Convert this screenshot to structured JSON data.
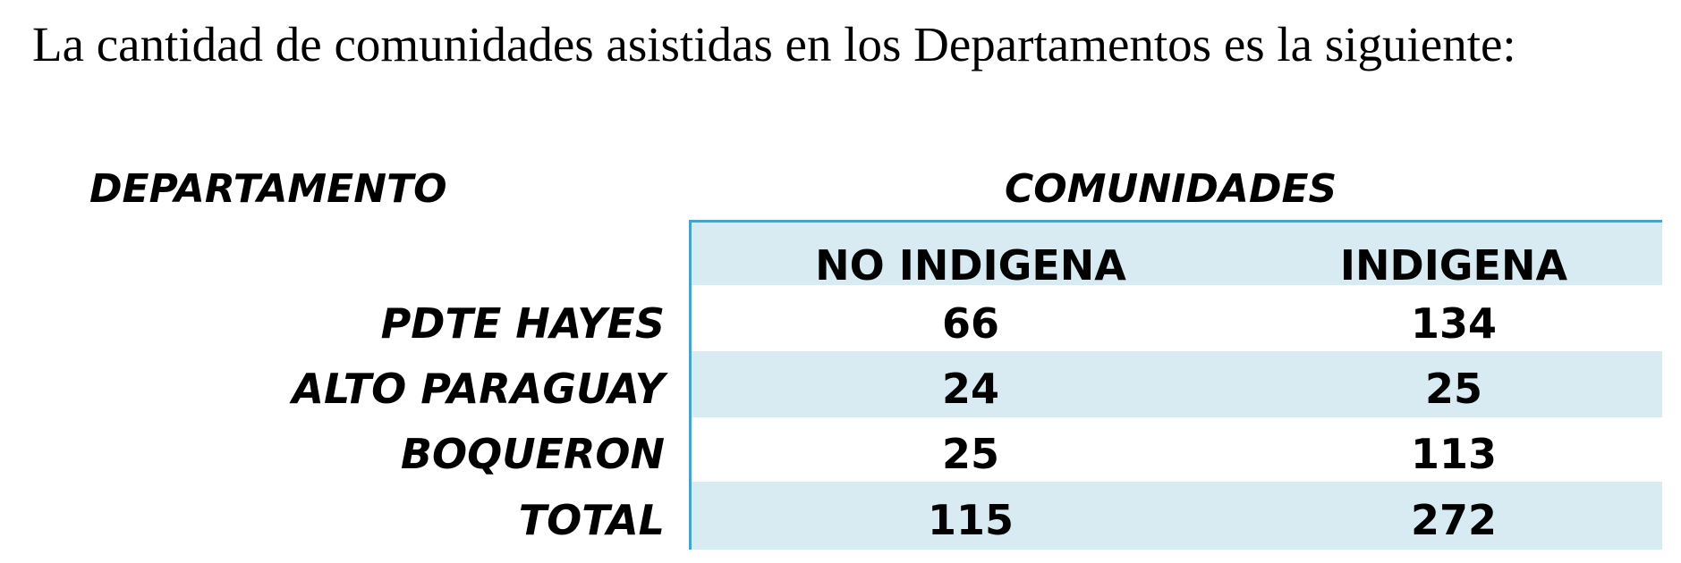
{
  "intro_text": "La cantidad de comunidades asistidas en los Departamentos es la siguiente:",
  "table": {
    "header_departamento": "DEPARTAMENTO",
    "header_comunidades": "COMUNIDADES",
    "columns": [
      "NO INDIGENA",
      "INDIGENA"
    ],
    "rows": [
      {
        "label": "PDTE HAYES",
        "no_indigena": "66",
        "indigena": "134"
      },
      {
        "label": "ALTO PARAGUAY",
        "no_indigena": "24",
        "indigena": "25"
      },
      {
        "label": "BOQUERON",
        "no_indigena": "25",
        "indigena": "113"
      },
      {
        "label": "TOTAL",
        "no_indigena": "115",
        "indigena": "272"
      }
    ]
  },
  "colors": {
    "band_fill": "#d8ebf3",
    "border": "#4aa3c7"
  }
}
